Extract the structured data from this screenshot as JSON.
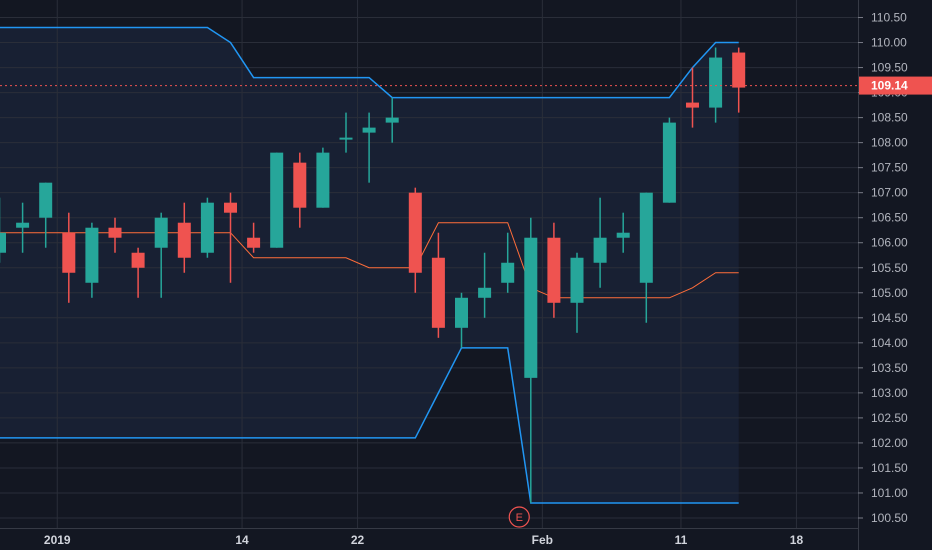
{
  "chart_data": {
    "type": "candlestick",
    "y_axis": {
      "ticks": [
        "110.50",
        "110.00",
        "109.50",
        "109.00",
        "108.50",
        "108.00",
        "107.50",
        "107.00",
        "106.50",
        "106.00",
        "105.50",
        "105.00",
        "104.50",
        "104.00",
        "103.50",
        "103.00",
        "102.50",
        "102.00",
        "101.50",
        "101.00",
        "100.50"
      ],
      "range": [
        100.3,
        110.85
      ]
    },
    "x_axis": {
      "ticks": [
        {
          "label": "2019",
          "index": 2.5
        },
        {
          "label": "14",
          "index": 10.5
        },
        {
          "label": "22",
          "index": 15.5
        },
        {
          "label": "Feb",
          "index": 23.5
        },
        {
          "label": "11",
          "index": 29.5
        },
        {
          "label": "18",
          "index": 34.5
        }
      ]
    },
    "last_price": "109.14",
    "earnings_marker": {
      "label": "E",
      "index": 22.5
    },
    "candles": [
      {
        "o": 105.8,
        "h": 106.9,
        "l": 105.6,
        "c": 106.2
      },
      {
        "o": 106.3,
        "h": 106.8,
        "l": 105.8,
        "c": 106.4
      },
      {
        "o": 106.5,
        "h": 107.2,
        "l": 105.9,
        "c": 107.2
      },
      {
        "o": 106.2,
        "h": 106.6,
        "l": 104.8,
        "c": 105.4
      },
      {
        "o": 105.2,
        "h": 106.4,
        "l": 104.9,
        "c": 106.3
      },
      {
        "o": 106.3,
        "h": 106.5,
        "l": 105.8,
        "c": 106.1
      },
      {
        "o": 105.8,
        "h": 105.9,
        "l": 104.9,
        "c": 105.5
      },
      {
        "o": 105.9,
        "h": 106.6,
        "l": 104.9,
        "c": 106.5
      },
      {
        "o": 106.4,
        "h": 106.8,
        "l": 105.4,
        "c": 105.7
      },
      {
        "o": 105.8,
        "h": 106.9,
        "l": 105.7,
        "c": 106.8
      },
      {
        "o": 106.8,
        "h": 107.0,
        "l": 105.2,
        "c": 106.6
      },
      {
        "o": 106.1,
        "h": 106.4,
        "l": 105.8,
        "c": 105.9
      },
      {
        "o": 105.9,
        "h": 107.8,
        "l": 105.9,
        "c": 107.8
      },
      {
        "o": 107.6,
        "h": 107.8,
        "l": 106.3,
        "c": 106.7
      },
      {
        "o": 106.7,
        "h": 107.9,
        "l": 106.7,
        "c": 107.8
      },
      {
        "o": 108.1,
        "h": 108.6,
        "l": 107.8,
        "c": 108.1
      },
      {
        "o": 108.2,
        "h": 108.6,
        "l": 107.2,
        "c": 108.3
      },
      {
        "o": 108.4,
        "h": 108.9,
        "l": 108.0,
        "c": 108.5
      },
      {
        "o": 107.0,
        "h": 107.1,
        "l": 105.0,
        "c": 105.4
      },
      {
        "o": 105.7,
        "h": 106.2,
        "l": 104.1,
        "c": 104.3
      },
      {
        "o": 104.3,
        "h": 105.0,
        "l": 103.9,
        "c": 104.9
      },
      {
        "o": 104.9,
        "h": 105.8,
        "l": 104.5,
        "c": 105.1
      },
      {
        "o": 105.2,
        "h": 106.2,
        "l": 105.0,
        "c": 105.6
      },
      {
        "o": 103.3,
        "h": 106.5,
        "l": 100.8,
        "c": 106.1
      },
      {
        "o": 106.1,
        "h": 106.4,
        "l": 104.5,
        "c": 104.8
      },
      {
        "o": 104.8,
        "h": 105.8,
        "l": 104.2,
        "c": 105.7
      },
      {
        "o": 105.6,
        "h": 106.9,
        "l": 105.1,
        "c": 106.1
      },
      {
        "o": 106.1,
        "h": 106.6,
        "l": 105.8,
        "c": 106.2
      },
      {
        "o": 105.2,
        "h": 107.0,
        "l": 104.4,
        "c": 107.0
      },
      {
        "o": 106.8,
        "h": 108.5,
        "l": 106.8,
        "c": 108.4
      },
      {
        "o": 108.8,
        "h": 109.5,
        "l": 108.3,
        "c": 108.7
      },
      {
        "o": 108.7,
        "h": 109.9,
        "l": 108.4,
        "c": 109.7
      },
      {
        "o": 109.8,
        "h": 109.9,
        "l": 108.6,
        "c": 109.1
      }
    ],
    "upper_band": [
      110.3,
      110.3,
      110.3,
      110.3,
      110.3,
      110.3,
      110.3,
      110.3,
      110.3,
      110.3,
      110.0,
      109.3,
      109.3,
      109.3,
      109.3,
      109.3,
      109.3,
      108.9,
      108.9,
      108.9,
      108.9,
      108.9,
      108.9,
      108.9,
      108.9,
      108.9,
      108.9,
      108.9,
      108.9,
      108.9,
      109.5,
      110.0,
      110.0
    ],
    "lower_band": [
      102.1,
      102.1,
      102.1,
      102.1,
      102.1,
      102.1,
      102.1,
      102.1,
      102.1,
      102.1,
      102.1,
      102.1,
      102.1,
      102.1,
      102.1,
      102.1,
      102.1,
      102.1,
      102.1,
      103.0,
      103.9,
      103.9,
      103.9,
      100.8,
      100.8,
      100.8,
      100.8,
      100.8,
      100.8,
      100.8,
      100.8,
      100.8,
      100.8
    ],
    "mid_line": [
      106.2,
      106.2,
      106.2,
      106.2,
      106.2,
      106.2,
      106.2,
      106.2,
      106.2,
      106.2,
      106.2,
      105.7,
      105.7,
      105.7,
      105.7,
      105.7,
      105.5,
      105.5,
      105.5,
      106.4,
      106.4,
      106.4,
      106.4,
      105.1,
      104.9,
      104.9,
      104.9,
      104.9,
      104.9,
      104.9,
      105.1,
      105.4,
      105.4
    ],
    "colors": {
      "background": "#131722",
      "band_fill": "#182033",
      "grid": "#2a2e39",
      "up": "#26a69a",
      "down": "#ef5350",
      "band_line": "#2196f3",
      "mid_line": "#ff6d3a",
      "axis_text": "#b2b5be"
    }
  }
}
